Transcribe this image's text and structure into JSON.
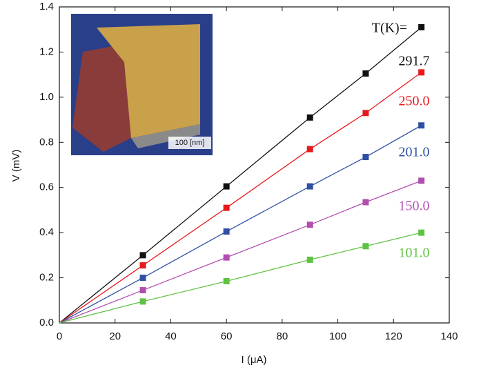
{
  "chart_data": {
    "type": "line",
    "x_label": "I (μA)",
    "y_label": "V (mV)",
    "legend_title": "T(K)=",
    "inset_scale_label": "100 [nm]",
    "x": [
      0,
      30,
      60,
      90,
      110,
      130
    ],
    "series": [
      {
        "name": "291.7",
        "color": "#111111",
        "values": [
          0,
          0.3,
          0.605,
          0.91,
          1.105,
          1.31
        ]
      },
      {
        "name": "250.0",
        "color": "#e8191c",
        "values": [
          0,
          0.255,
          0.51,
          0.77,
          0.93,
          1.11
        ]
      },
      {
        "name": "201.0",
        "color": "#2f50a2",
        "values": [
          0,
          0.2,
          0.405,
          0.605,
          0.735,
          0.875
        ]
      },
      {
        "name": "150.0",
        "color": "#b24fae",
        "values": [
          0,
          0.145,
          0.29,
          0.435,
          0.535,
          0.63
        ]
      },
      {
        "name": "101.0",
        "color": "#5fc243",
        "values": [
          0,
          0.095,
          0.185,
          0.28,
          0.34,
          0.4
        ]
      }
    ],
    "xlim": [
      0,
      140
    ],
    "xticks": [
      0,
      20,
      40,
      60,
      80,
      100,
      120,
      140
    ],
    "ylim": [
      0,
      1.4
    ],
    "yticks": [
      {
        "value": 0,
        "label": "0.0"
      },
      0.2,
      0.4,
      0.6,
      0.8,
      {
        "value": 1,
        "label": "1.0"
      },
      1.2,
      1.4
    ]
  }
}
